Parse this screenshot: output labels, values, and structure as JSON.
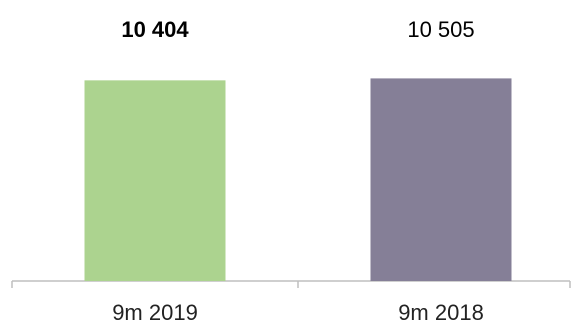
{
  "chart_data": {
    "type": "bar",
    "categories": [
      "9m 2019",
      "9m 2018"
    ],
    "values": [
      10404,
      10505
    ],
    "value_labels": [
      "10 404",
      "10 505"
    ],
    "value_label_bold": [
      true,
      false
    ],
    "colors": [
      "#acd38f",
      "#857f97"
    ],
    "axis_color": "#bfbfbf",
    "title": "",
    "xlabel": "",
    "ylabel": "",
    "ylim": [
      0,
      12600
    ],
    "grid": false,
    "legend": "none"
  }
}
